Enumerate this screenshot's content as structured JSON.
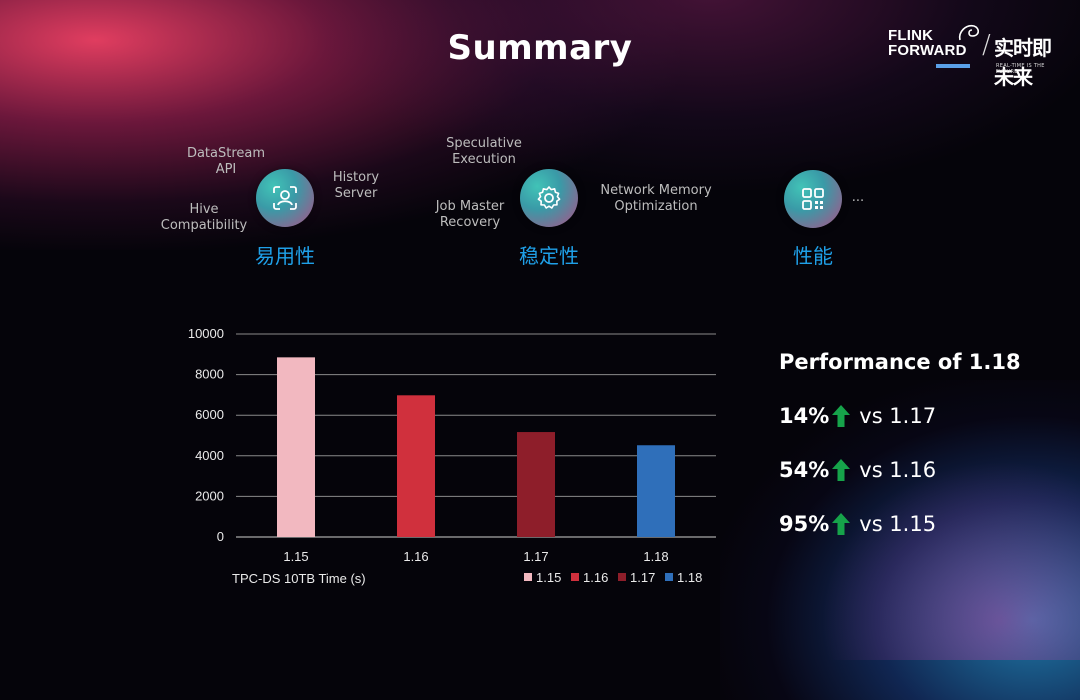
{
  "title": "Summary",
  "logo": {
    "line1": "FLINK",
    "line2": "FORWARD",
    "cn": "实时即未来",
    "slogan": "REAL-TIME IS THE FUTURE"
  },
  "categories": [
    {
      "label": "易用性",
      "icon": "user-scan-icon",
      "features": [
        "DataStream\nAPI",
        "History\nServer",
        "Hive\nCompatibility"
      ]
    },
    {
      "label": "稳定性",
      "icon": "gear-icon",
      "features": [
        "Speculative\nExecution",
        "Job Master\nRecovery",
        "Network Memory\nOptimization"
      ]
    },
    {
      "label": "性能",
      "icon": "qr-code-icon",
      "features": [
        "..."
      ]
    }
  ],
  "chart_data": {
    "type": "bar",
    "categories": [
      "1.15",
      "1.16",
      "1.17",
      "1.18"
    ],
    "values": [
      8850,
      6980,
      5170,
      4520
    ],
    "colors": [
      "#f2b8c0",
      "#d0303d",
      "#8e1e2a",
      "#2f6fba"
    ],
    "xlabel": "TPC-DS 10TB Time (s)",
    "ylim": [
      0,
      10000
    ],
    "yticks": [
      0,
      2000,
      4000,
      6000,
      8000,
      10000
    ],
    "grid": true,
    "legend": [
      "1.15",
      "1.16",
      "1.17",
      "1.18"
    ],
    "legend_position": "bottom-right"
  },
  "performance": {
    "title": "Performance of 1.18",
    "rows": [
      {
        "pct": "14%",
        "vs": "vs 1.17"
      },
      {
        "pct": "54%",
        "vs": "vs 1.16"
      },
      {
        "pct": "95%",
        "vs": "vs 1.15"
      }
    ],
    "arrow_color": "#16a34a"
  }
}
